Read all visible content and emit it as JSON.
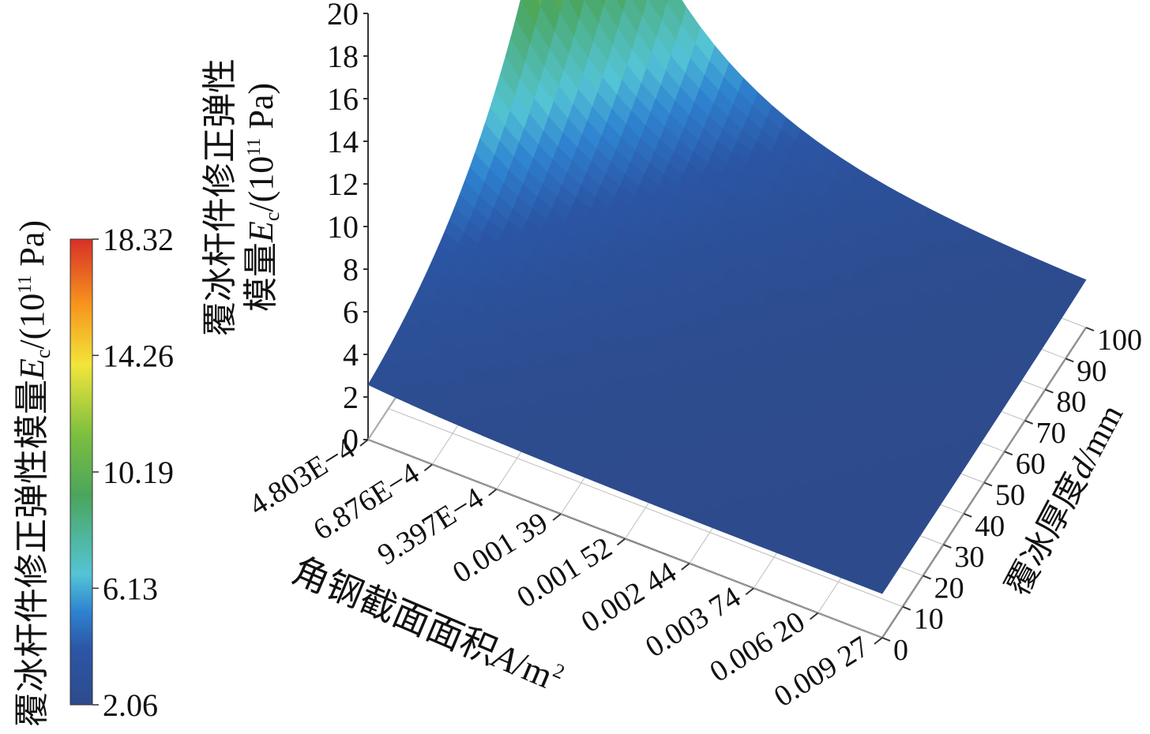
{
  "chart_data": {
    "type": "surface3d",
    "colorbar": {
      "ticks": [
        "18.32",
        "14.26",
        "10.19",
        "6.13",
        "2.06"
      ],
      "min": 2.06,
      "max": 18.32,
      "colors": [
        "#d73027",
        "#f7941d",
        "#f2e53a",
        "#7cbf3f",
        "#4aa55c",
        "#54c4d6",
        "#2e82d0",
        "#2b56a6",
        "#2d4b8c"
      ],
      "label": {
        "prefix": "覆冰杆件修正弹性模量",
        "symbol": "E",
        "sub": "c",
        "unit_pre": "/(10",
        "sup": "11",
        "unit_post": " Pa)"
      }
    },
    "z_axis": {
      "ticks": [
        "0",
        "2",
        "4",
        "6",
        "8",
        "10",
        "12",
        "14",
        "16",
        "18",
        "20"
      ],
      "range": [
        0,
        20
      ],
      "label_line1": "覆冰杆件修正弹性",
      "label_line2_prefix": "模量",
      "symbol": "E",
      "sub": "c",
      "unit_pre": "/(10",
      "sup": "11",
      "unit_post": " Pa)"
    },
    "x_axis": {
      "ticks": [
        "4.803E−4",
        "6.876E−4",
        "9.397E−4",
        "0.001 39",
        "0.001 52",
        "0.002 44",
        "0.003 74",
        "0.006 20",
        "0.009 27"
      ],
      "label_prefix": "角钢截面面积",
      "symbol": "A",
      "unit": "/m",
      "sup": "2"
    },
    "y_axis": {
      "ticks": [
        "0",
        "10",
        "20",
        "30",
        "40",
        "50",
        "60",
        "70",
        "80",
        "90",
        "100"
      ],
      "range": [
        0,
        100
      ],
      "label_prefix": "覆冰厚度",
      "symbol": "d",
      "unit": "/mm"
    },
    "surface": {
      "x_index_values": [
        0,
        1,
        2,
        3,
        4,
        5,
        6,
        7,
        8
      ],
      "thickness_values": [
        0,
        10,
        20,
        30,
        40,
        50,
        60,
        70,
        80,
        90,
        100
      ],
      "z_min": 2.06,
      "z_max": 18.32,
      "peak_at": {
        "A": "4.803E−4",
        "d": 100,
        "Ec": 18.32
      },
      "floor_at": {
        "A": "0.009 27",
        "d": 0,
        "Ec": 2.06
      }
    }
  }
}
